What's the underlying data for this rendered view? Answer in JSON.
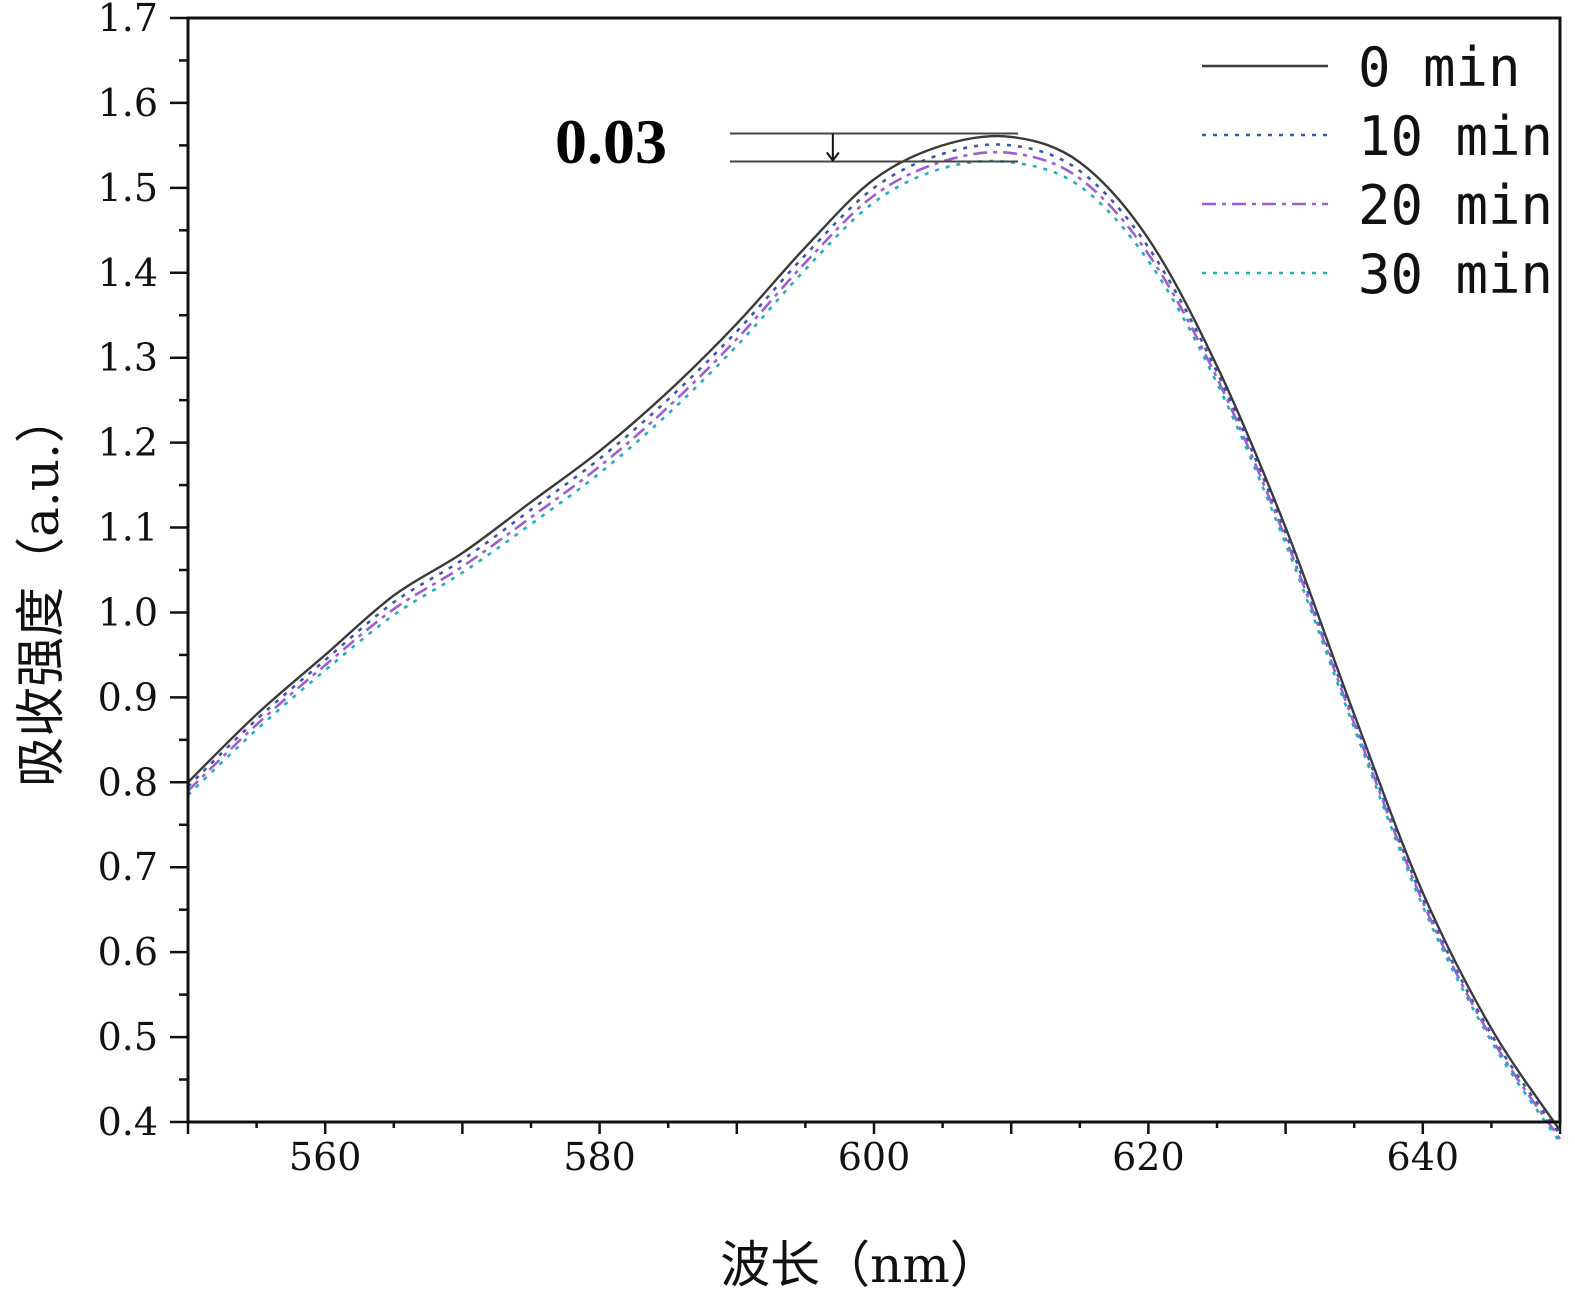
{
  "chart_data": {
    "type": "line",
    "title": "",
    "xlabel": "波长（nm）",
    "ylabel": "吸收强度（a.u.）",
    "xlim": [
      550,
      650
    ],
    "ylim": [
      0.4,
      1.7
    ],
    "x_ticks": [
      560,
      580,
      600,
      620,
      640
    ],
    "x_tick_labels": [
      "560",
      "580",
      "600",
      "620",
      "640"
    ],
    "y_ticks": [
      0.4,
      0.5,
      0.6,
      0.7,
      0.8,
      0.9,
      1.0,
      1.1,
      1.2,
      1.3,
      1.4,
      1.5,
      1.6,
      1.7
    ],
    "y_tick_labels": [
      "0.4",
      "0.5",
      "0.6",
      "0.7",
      "0.8",
      "0.9",
      "1.0",
      "1.1",
      "1.2",
      "1.3",
      "1.4",
      "1.5",
      "1.6",
      "1.7"
    ],
    "legend_position": "top-right",
    "x": [
      550,
      555,
      560,
      565,
      570,
      575,
      580,
      585,
      590,
      595,
      600,
      605,
      610,
      615,
      620,
      625,
      630,
      635,
      640,
      645,
      650
    ],
    "series": [
      {
        "name": "0 min",
        "color": "#3a3a3a",
        "dash": "solid",
        "values": [
          0.8,
          0.88,
          0.95,
          1.02,
          1.07,
          1.13,
          1.19,
          1.26,
          1.34,
          1.43,
          1.51,
          1.55,
          1.56,
          1.53,
          1.44,
          1.29,
          1.1,
          0.88,
          0.67,
          0.51,
          0.39
        ]
      },
      {
        "name": "10 min",
        "color": "#3b55b0",
        "dash": "dotted",
        "values": [
          0.795,
          0.874,
          0.944,
          1.012,
          1.062,
          1.121,
          1.181,
          1.251,
          1.331,
          1.421,
          1.5,
          1.54,
          1.55,
          1.52,
          1.43,
          1.283,
          1.093,
          0.874,
          0.663,
          0.503,
          0.385
        ]
      },
      {
        "name": "20 min",
        "color": "#a05cd2",
        "dash": "dashdot",
        "values": [
          0.79,
          0.868,
          0.938,
          1.004,
          1.054,
          1.112,
          1.172,
          1.242,
          1.322,
          1.412,
          1.491,
          1.531,
          1.541,
          1.511,
          1.422,
          1.276,
          1.087,
          0.869,
          0.659,
          0.499,
          0.38
        ]
      },
      {
        "name": "30 min",
        "color": "#1fb0c0",
        "dash": "dotted",
        "values": [
          0.785,
          0.862,
          0.932,
          0.997,
          1.047,
          1.104,
          1.164,
          1.234,
          1.314,
          1.404,
          1.483,
          1.523,
          1.53,
          1.502,
          1.414,
          1.27,
          1.081,
          0.864,
          0.654,
          0.495,
          0.376
        ]
      }
    ],
    "annotation": {
      "text": "0.03",
      "x_start": 589.5,
      "x_end": 610.5,
      "arrow_x": 597,
      "y_top": 1.564,
      "y_bottom": 1.531
    }
  }
}
